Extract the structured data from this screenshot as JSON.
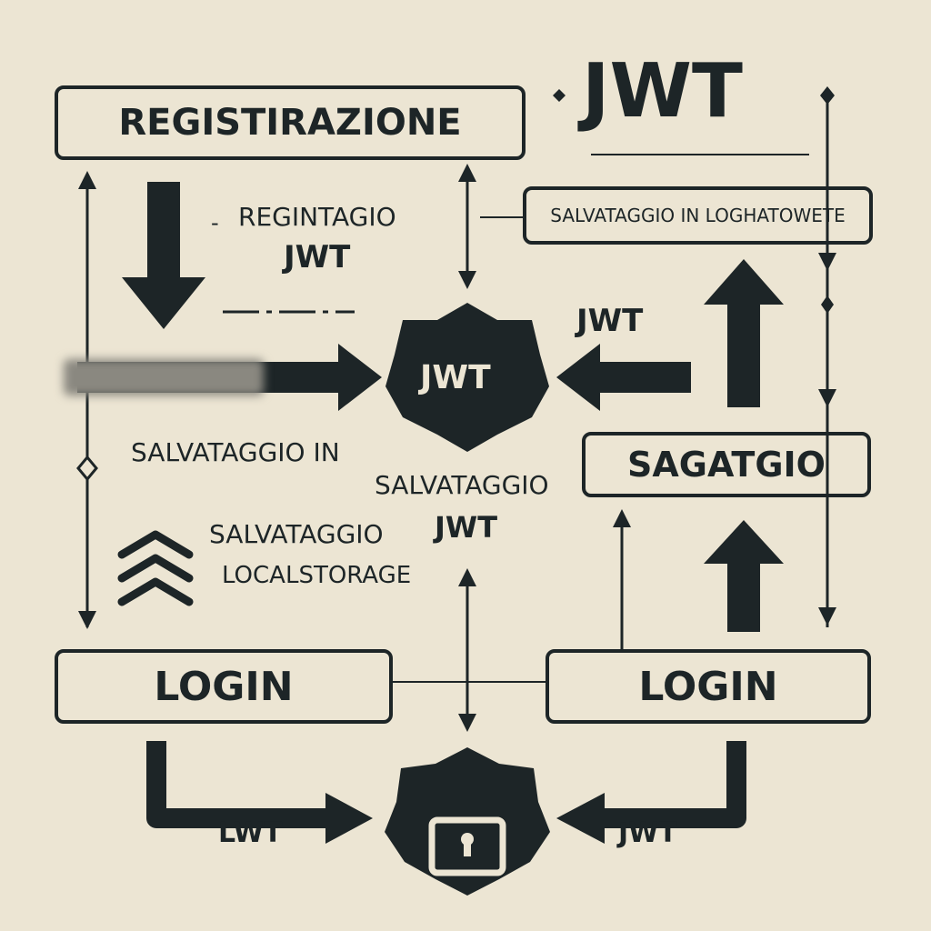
{
  "title": "JWT",
  "registration_box": "REGISTIRAZIONE",
  "storage_box": "SALVATAGGIO IN LOGHATOWETE",
  "sagatgio_box": "SAGATGIO",
  "login_left": "LOGIN",
  "login_right": "LOGIN",
  "hub_label": "JWT",
  "labels": {
    "registagio_line1": "REGINTAGIO",
    "registagio_line2": "JWT",
    "jwt_right": "JWT",
    "salvataggio_in": "SALVATAGGIO IN",
    "salvataggio_jwt_line1": "SALVATAGGIO",
    "salvataggio_jwt_line2": "JWT",
    "local_line1": "SALVATAGGIO",
    "local_line2": "LOCALSTORAGE",
    "bottom_left_arrow": "LWT",
    "bottom_right_arrow": "JWT"
  },
  "icons": [
    "lock-icon",
    "double-chevron-up-icon"
  ],
  "colors": {
    "background": "#ece5d3",
    "ink": "#1d2527"
  }
}
